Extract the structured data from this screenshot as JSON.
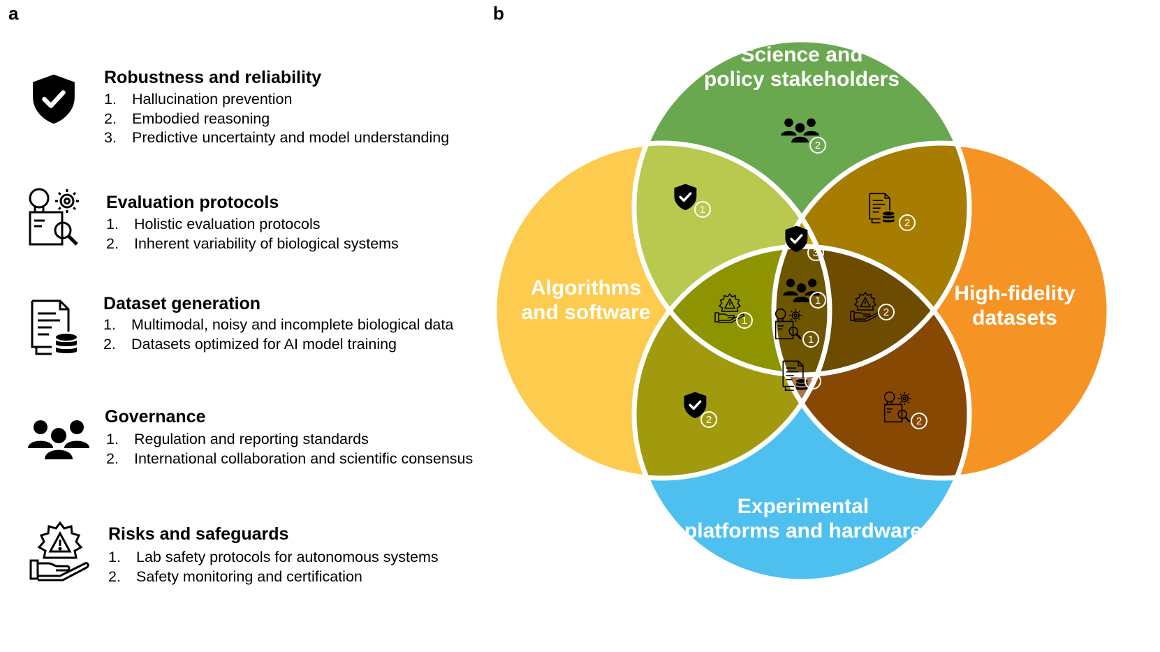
{
  "panel_a": {
    "label": "a",
    "sections": [
      {
        "icon": "shield-check-icon",
        "title": "Robustness and reliability",
        "items": [
          {
            "num": "1.",
            "text": "Hallucination prevention"
          },
          {
            "num": "2.",
            "text": "Embodied reasoning"
          },
          {
            "num": "3.",
            "text": "Predictive uncertainty and model understanding"
          }
        ]
      },
      {
        "icon": "evaluation-icon",
        "title": "Evaluation protocols",
        "items": [
          {
            "num": "1.",
            "text": "Holistic evaluation protocols"
          },
          {
            "num": "2.",
            "text": "Inherent variability of biological systems"
          }
        ]
      },
      {
        "icon": "dataset-icon",
        "title": "Dataset generation",
        "items": [
          {
            "num": "1.",
            "text": "Multimodal, noisy and incomplete biological data"
          },
          {
            "num": "2.",
            "text": "Datasets optimized for AI model training"
          }
        ]
      },
      {
        "icon": "people-icon",
        "title": "Governance",
        "items": [
          {
            "num": "1.",
            "text": "Regulation and reporting standards"
          },
          {
            "num": "2.",
            "text": "International collaboration and scientific consensus"
          }
        ]
      },
      {
        "icon": "safety-icon",
        "title": "Risks and safeguards",
        "items": [
          {
            "num": "1.",
            "text": "Lab safety protocols for autonomous systems"
          },
          {
            "num": "2.",
            "text": "Safety monitoring and certification"
          }
        ]
      }
    ]
  },
  "panel_b": {
    "label": "b",
    "circles": {
      "top": {
        "lines": [
          "Science and",
          "policy stakeholders"
        ],
        "color": "#6aa84f"
      },
      "left": {
        "lines": [
          "Algorithms",
          "and software"
        ],
        "color": "#fdcb4e"
      },
      "right": {
        "lines": [
          "High-fidelity",
          "datasets"
        ],
        "color": "#f59424"
      },
      "bottom": {
        "lines": [
          "Experimental",
          "platforms and hardware"
        ],
        "color": "#4ec0ef"
      }
    },
    "region_colors": {
      "top_left": "#b9c84f",
      "top_right": "#a67d00",
      "bottom_left": "#a29a0e",
      "bottom_right": "#874803",
      "top_left_right": "#c7a200",
      "left_right_bottom": "#ab774a",
      "top_left_bottom": "#8e9300",
      "top_right_bottom": "#6d4b00",
      "center": "#6e5500",
      "outline": "#ffffff"
    },
    "badges": [
      {
        "icon": "people-icon",
        "number": "2"
      },
      {
        "icon": "shield-check-icon",
        "number": "1"
      },
      {
        "icon": "dataset-icon",
        "number": "2"
      },
      {
        "icon": "shield-check-icon",
        "number": "3"
      },
      {
        "icon": "safety-icon",
        "number": "1"
      },
      {
        "icon": "people-icon",
        "number": "1"
      },
      {
        "icon": "evaluation-icon",
        "number": "1"
      },
      {
        "icon": "safety-icon",
        "number": "2"
      },
      {
        "icon": "dataset-icon",
        "number": "1"
      },
      {
        "icon": "shield-check-icon",
        "number": "2"
      },
      {
        "icon": "evaluation-icon",
        "number": "2"
      }
    ]
  }
}
